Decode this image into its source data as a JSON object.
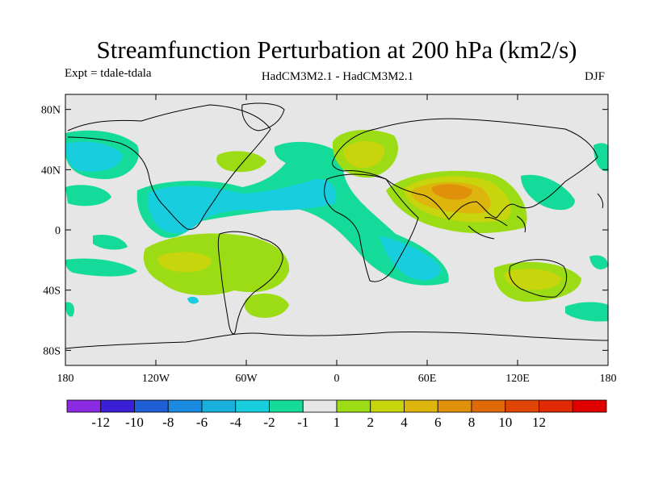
{
  "title": "Streamfunction Perturbation at 200 hPa (km2/s)",
  "experiment": "Expt = tdale-tdala",
  "models": "HadCM3M2.1 - HadCM3M2.1",
  "season": "DJF",
  "map": {
    "lat_ticks": [
      {
        "value": 80,
        "label": "80N"
      },
      {
        "value": 40,
        "label": "40N"
      },
      {
        "value": 0,
        "label": "0"
      },
      {
        "value": -40,
        "label": "40S"
      },
      {
        "value": -80,
        "label": "80S"
      }
    ],
    "lon_ticks": [
      {
        "value": -180,
        "label": "180"
      },
      {
        "value": -120,
        "label": "120W"
      },
      {
        "value": -60,
        "label": "60W"
      },
      {
        "value": 0,
        "label": "0"
      },
      {
        "value": 60,
        "label": "60E"
      },
      {
        "value": 120,
        "label": "120E"
      },
      {
        "value": 180,
        "label": "180"
      }
    ],
    "background_color": "#e6e6e6"
  },
  "colorbar": {
    "colors": [
      "#8a2be2",
      "#3a1fd6",
      "#1f5fd6",
      "#1a8be0",
      "#1ab0dc",
      "#18cede",
      "#15db9a",
      "#e6e6e6",
      "#9bdc14",
      "#c8d40c",
      "#ddb50c",
      "#e0900a",
      "#e06a08",
      "#e04506",
      "#e02a04",
      "#e00000"
    ],
    "labels": [
      "-12",
      "-10",
      "-8",
      "-6",
      "-4",
      "-2",
      "-1",
      "1",
      "2",
      "4",
      "6",
      "8",
      "10",
      "12"
    ]
  }
}
